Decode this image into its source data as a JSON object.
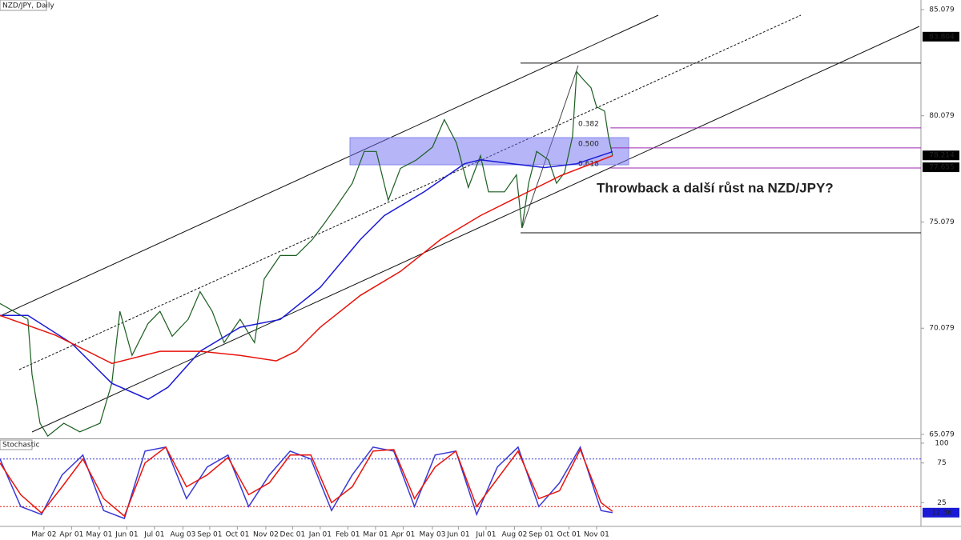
{
  "chart_data": [
    {
      "type": "line",
      "title": "NZD/JPY, Daily",
      "annotation": "Throwback a další růst na NZD/JPY?",
      "xlim": [
        0.41,
        33.74
      ],
      "ylim": [
        64.89,
        85.53
      ],
      "xticks": [
        {
          "value": 2,
          "label": "Mar 02"
        },
        {
          "value": 3,
          "label": "Apr 01"
        },
        {
          "value": 4,
          "label": "May 01"
        },
        {
          "value": 5,
          "label": "Jun 01"
        },
        {
          "value": 6,
          "label": "Jul 01"
        },
        {
          "value": 7.03,
          "label": "Aug 03"
        },
        {
          "value": 8,
          "label": "Sep 01"
        },
        {
          "value": 9,
          "label": "Oct 01"
        },
        {
          "value": 10.03,
          "label": "Nov 02"
        },
        {
          "value": 11,
          "label": "Dec 01"
        },
        {
          "value": 12,
          "label": "Jan 01"
        },
        {
          "value": 13,
          "label": "Feb 01"
        },
        {
          "value": 14,
          "label": "Mar 01"
        },
        {
          "value": 15,
          "label": "Apr 01"
        },
        {
          "value": 16.06,
          "label": "May 03"
        },
        {
          "value": 17,
          "label": "Jun 01"
        },
        {
          "value": 18,
          "label": "Jul 01"
        },
        {
          "value": 19.03,
          "label": "Aug 02"
        },
        {
          "value": 20,
          "label": "Sep 01"
        },
        {
          "value": 21,
          "label": "Oct 01"
        },
        {
          "value": 22,
          "label": "Nov 01"
        }
      ],
      "yticks": [
        65.079,
        70.079,
        75.079,
        80.079,
        85.079
      ],
      "price_labels": [
        83.804,
        78.214,
        77.655
      ],
      "fib": {
        "high": 82.56,
        "low": 74.57,
        "start": 19.25,
        "levels_start": 22.5,
        "color": "#9c27b0",
        "levels": [
          0.382,
          {
            "value": 0.5,
            "label": "0.500"
          },
          0.618
        ]
      },
      "series": [
        {
          "color": "#1b5e20",
          "x": [
            0.41,
            1.42,
            1.57,
            1.86,
            2.14,
            2.72,
            3.3,
            4.03,
            4.46,
            4.75,
            5.19,
            5.77,
            6.2,
            6.64,
            7.22,
            7.65,
            8.09,
            8.52,
            9.1,
            9.62,
            9.97,
            10.55,
            11.13,
            11.71,
            12.14,
            12.58,
            13.16,
            13.59,
            14.03,
            14.46,
            14.9,
            15.48,
            16.06,
            16.49,
            16.93,
            17.36,
            17.8,
            18.09,
            18.67,
            19.1,
            19.3,
            19.54,
            19.83,
            20.26,
            20.55,
            20.84,
            21.13,
            21.28,
            21.51,
            21.8,
            22.0,
            22.29,
            22.43,
            22.58
          ],
          "values": [
            71.24,
            70.5,
            67.9,
            65.6,
            65.0,
            65.6,
            65.2,
            65.6,
            67.5,
            70.87,
            68.8,
            70.3,
            70.87,
            69.7,
            70.5,
            71.8,
            70.87,
            69.4,
            70.5,
            69.4,
            72.4,
            73.5,
            73.5,
            74.25,
            75.0,
            75.8,
            76.9,
            78.4,
            78.4,
            76.1,
            77.6,
            78.0,
            78.6,
            79.9,
            78.8,
            76.7,
            78.2,
            76.5,
            76.5,
            77.3,
            74.8,
            76.9,
            78.4,
            78.0,
            76.9,
            77.4,
            79.1,
            82.15,
            81.8,
            81.4,
            80.5,
            80.3,
            79.1,
            78.2
          ]
        },
        {
          "color": "#1a1ad6",
          "x": [
            0.41,
            1.42,
            3.01,
            4.46,
            5.77,
            6.49,
            7.65,
            9.1,
            10.55,
            12.0,
            13.45,
            14.32,
            15.77,
            17.22,
            17.8,
            18.96,
            20.12,
            21.28,
            22.58
          ],
          "values": [
            70.68,
            70.68,
            69.36,
            67.48,
            66.73,
            67.3,
            68.99,
            70.12,
            70.49,
            72.0,
            74.25,
            75.38,
            76.51,
            77.82,
            78.01,
            77.82,
            77.64,
            77.82,
            78.39
          ]
        },
        {
          "color": "#e8140c",
          "x": [
            0.41,
            2.43,
            4.46,
            6.2,
            7.65,
            9.1,
            10.41,
            11.13,
            12.0,
            13.45,
            14.9,
            16.35,
            17.8,
            19.25,
            20.7,
            22.58
          ],
          "values": [
            70.68,
            69.74,
            68.42,
            68.99,
            68.99,
            68.8,
            68.54,
            68.99,
            70.12,
            71.62,
            72.75,
            74.25,
            75.38,
            76.32,
            77.26,
            78.2
          ]
        }
      ]
    },
    {
      "type": "line",
      "title": "Stochastic",
      "xlim": [
        0.41,
        33.74
      ],
      "ylim": [
        -5,
        105
      ],
      "yticks": [
        25,
        75,
        100
      ],
      "levels": [
        {
          "value": 80,
          "color": "#3a3ad6"
        },
        {
          "value": 20,
          "color": "#e8140c"
        }
      ],
      "last_label": 12.36,
      "series": [
        {
          "color": "#3a3ad6",
          "x": [
            0.41,
            1.16,
            1.91,
            2.66,
            3.41,
            4.16,
            4.91,
            5.66,
            6.41,
            7.16,
            7.91,
            8.66,
            9.41,
            10.16,
            10.91,
            11.66,
            12.41,
            13.16,
            13.91,
            14.66,
            15.41,
            16.16,
            16.91,
            17.66,
            18.41,
            19.16,
            19.91,
            20.66,
            21.41,
            22.16,
            22.58
          ],
          "values": [
            80,
            20,
            10,
            60,
            85,
            15,
            5,
            90,
            95,
            30,
            70,
            85,
            20,
            60,
            90,
            80,
            15,
            60,
            95,
            90,
            20,
            85,
            90,
            10,
            70,
            95,
            20,
            50,
            95,
            15,
            12.36
          ]
        },
        {
          "color": "#e8140c",
          "x": [
            0.41,
            1.16,
            1.91,
            2.66,
            3.41,
            4.16,
            4.91,
            5.66,
            6.41,
            7.16,
            7.91,
            8.66,
            9.41,
            10.16,
            10.91,
            11.66,
            12.41,
            13.16,
            13.91,
            14.66,
            15.41,
            16.16,
            16.91,
            17.66,
            18.41,
            19.16,
            19.91,
            20.66,
            21.41,
            22.16,
            22.58
          ],
          "values": [
            75,
            35,
            12,
            45,
            80,
            30,
            8,
            75,
            95,
            45,
            60,
            82,
            35,
            50,
            85,
            85,
            25,
            45,
            90,
            92,
            30,
            70,
            90,
            20,
            55,
            90,
            30,
            40,
            92,
            25,
            14
          ]
        }
      ]
    }
  ]
}
